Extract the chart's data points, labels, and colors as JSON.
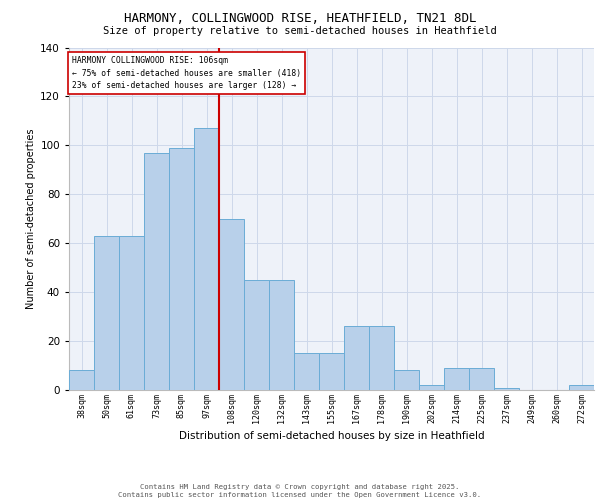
{
  "title1": "HARMONY, COLLINGWOOD RISE, HEATHFIELD, TN21 8DL",
  "title2": "Size of property relative to semi-detached houses in Heathfield",
  "xlabel": "Distribution of semi-detached houses by size in Heathfield",
  "ylabel": "Number of semi-detached properties",
  "categories": [
    "38sqm",
    "50sqm",
    "61sqm",
    "73sqm",
    "85sqm",
    "97sqm",
    "108sqm",
    "120sqm",
    "132sqm",
    "143sqm",
    "155sqm",
    "167sqm",
    "178sqm",
    "190sqm",
    "202sqm",
    "214sqm",
    "225sqm",
    "237sqm",
    "249sqm",
    "260sqm",
    "272sqm"
  ],
  "values": [
    8,
    63,
    63,
    97,
    99,
    107,
    70,
    45,
    45,
    15,
    15,
    26,
    26,
    8,
    2,
    9,
    9,
    1,
    0,
    0,
    2
  ],
  "bar_color": "#b8d0ea",
  "bar_edge_color": "#6aacd6",
  "reference_line_color": "#cc0000",
  "reference_line_index": 6,
  "annotation_title": "HARMONY COLLINGWOOD RISE: 106sqm",
  "annotation_line1": "← 75% of semi-detached houses are smaller (418)",
  "annotation_line2": "23% of semi-detached houses are larger (128) →",
  "annotation_box_color": "#ffffff",
  "annotation_box_edge_color": "#cc0000",
  "ylim": [
    0,
    140
  ],
  "yticks": [
    0,
    20,
    40,
    60,
    80,
    100,
    120,
    140
  ],
  "grid_color": "#cdd8ea",
  "background_color": "#eef2f9",
  "footer_line1": "Contains HM Land Registry data © Crown copyright and database right 2025.",
  "footer_line2": "Contains public sector information licensed under the Open Government Licence v3.0."
}
